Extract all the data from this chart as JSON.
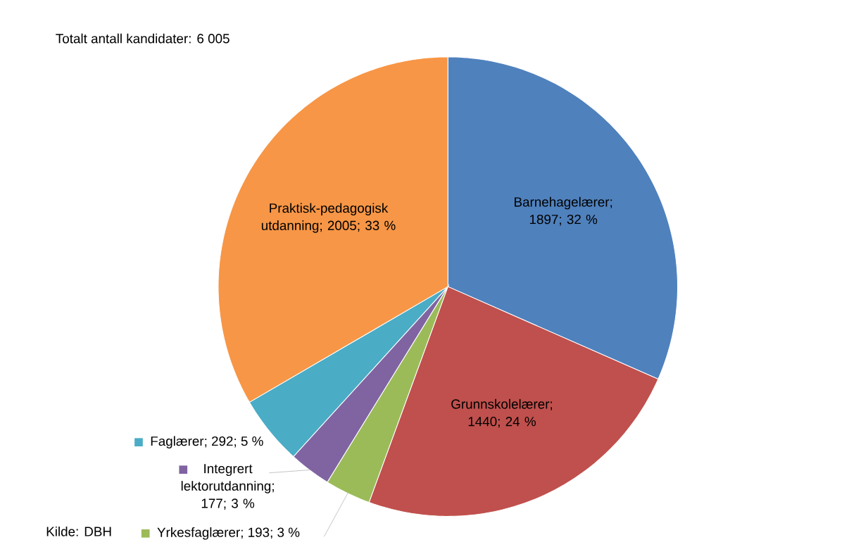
{
  "chart_data": {
    "type": "pie",
    "categories": [
      "Barnehagelærer; 1897; 32 %",
      "Grunnskolelærer; 1440; 24 %",
      "Yrkesfaglærer; 193; 3 %",
      "Integrert lektorutdanning; 177; 3 %",
      "Faglærer; 292; 5 %",
      "Praktisk-pedagogisk utdanning; 2005; 33 %"
    ],
    "values": [
      1897,
      1440,
      193,
      177,
      292,
      2005
    ],
    "colors": [
      "#4f81bd",
      "#c0504d",
      "#9bbb59",
      "#8064a2",
      "#4bacc6",
      "#f79646"
    ],
    "legend": "bottom left",
    "annotations": [
      "Totalt antall kandidater:  6 005",
      "Kilde: DBH"
    ]
  }
}
